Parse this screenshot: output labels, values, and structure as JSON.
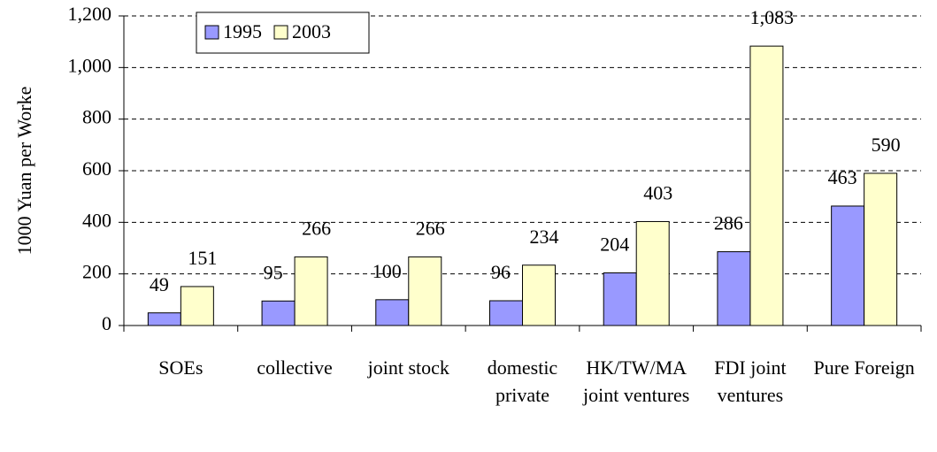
{
  "chart_data": {
    "type": "bar",
    "y_label": "1000 Yuan per Worke",
    "categories": [
      "SOEs",
      "collective",
      "joint stock",
      "domestic private",
      "HK/TW/MA joint ventures",
      "FDI joint ventures",
      "Pure Foreign"
    ],
    "series": [
      {
        "name": "1995",
        "color": "#9999ff",
        "values": [
          49,
          95,
          100,
          96,
          204,
          286,
          463
        ]
      },
      {
        "name": "2003",
        "color": "#ffffcc",
        "values": [
          151,
          266,
          266,
          234,
          403,
          1083,
          590
        ],
        "value_labels": [
          "151",
          "266",
          "266",
          "234",
          "403",
          "1,083",
          "590"
        ]
      }
    ],
    "ylim": [
      0,
      1200
    ],
    "yticks": [
      0,
      200,
      400,
      600,
      800,
      {
        "value": 1000,
        "label": "1,000"
      },
      {
        "value": 1200,
        "label": "1,200"
      }
    ],
    "grid": true,
    "legend": "top-left"
  }
}
